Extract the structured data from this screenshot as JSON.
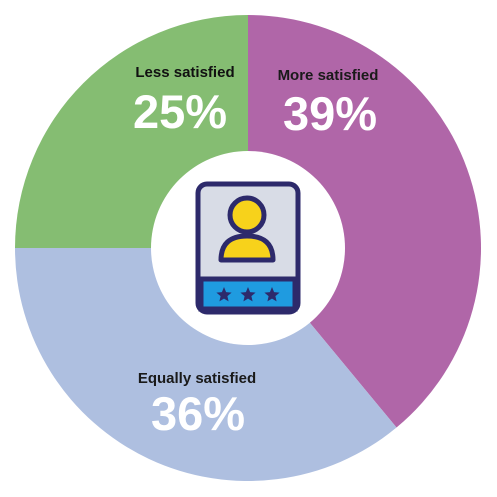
{
  "chart_data": {
    "type": "pie",
    "style": "donut",
    "start": "top",
    "direction": "clockwise",
    "slices": [
      {
        "label": "More satisfied",
        "value": 39,
        "display": "39%",
        "color": "#b066a8",
        "label_color": "#1a1a1a"
      },
      {
        "label": "Equally satisfied",
        "value": 36,
        "display": "36%",
        "color": "#aebfe0",
        "label_color": "#1a1a1a"
      },
      {
        "label": "Less satisfied",
        "value": 25,
        "display": "25%",
        "color": "#85bd72",
        "label_color": "#111111"
      }
    ]
  },
  "center_icon": {
    "name": "user-profile-card-icon",
    "colors": {
      "card": "#d8dce6",
      "outline": "#2d2a6b",
      "avatar": "#f7d21b",
      "band": "#1f9be0",
      "stars": "#2d2a6b"
    }
  }
}
